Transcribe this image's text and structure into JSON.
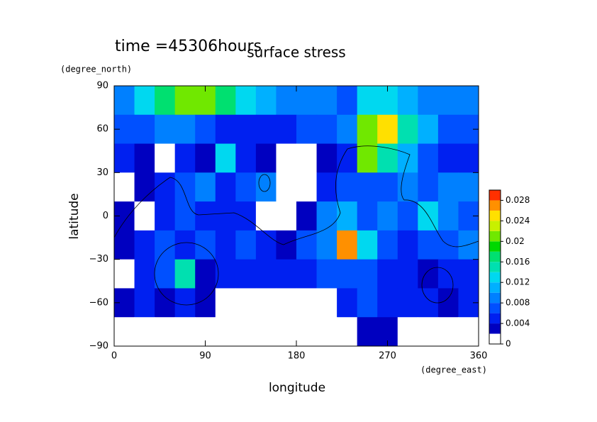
{
  "chart_data": {
    "type": "contour",
    "title": "surface stress",
    "subtitle": "time =45306hours",
    "x_label": "longitude",
    "x_unit": "(degree_east)",
    "y_label": "latitude",
    "y_unit": "(degree_north)",
    "xlim": [
      0,
      360
    ],
    "ylim": [
      -90,
      90
    ],
    "xticks": [
      0,
      90,
      180,
      270,
      360
    ],
    "yticks": [
      {
        "value": -90,
        "label": "−90"
      },
      {
        "value": -60,
        "label": "−60"
      },
      {
        "value": -30,
        "label": "−30"
      },
      0,
      30,
      60,
      90
    ],
    "x": [
      10,
      30,
      50,
      70,
      90,
      110,
      130,
      150,
      170,
      190,
      210,
      230,
      250,
      270,
      290,
      310,
      330,
      350
    ],
    "y": [
      80,
      60,
      40,
      20,
      0,
      -20,
      -40,
      -60,
      -80
    ],
    "z": [
      [
        0.009,
        0.012,
        0.016,
        0.02,
        0.02,
        0.016,
        0.012,
        0.01,
        0.009,
        0.009,
        0.008,
        0.007,
        0.012,
        0.012,
        0.01,
        0.008,
        0.008,
        0.009
      ],
      [
        0.006,
        0.007,
        0.008,
        0.008,
        0.006,
        0.004,
        0.005,
        0.005,
        0.005,
        0.006,
        0.006,
        0.008,
        0.02,
        0.024,
        0.014,
        0.01,
        0.007,
        0.006
      ],
      [
        0.004,
        0.002,
        0.001,
        0.004,
        0.003,
        0.012,
        0.004,
        0.003,
        0.001,
        0.001,
        0.003,
        0.005,
        0.02,
        0.014,
        0.01,
        0.006,
        0.005,
        0.004
      ],
      [
        0.001,
        0.002,
        0.004,
        0.006,
        0.008,
        0.004,
        0.006,
        0.008,
        0.001,
        0.001,
        0.004,
        0.006,
        0.007,
        0.006,
        0.008,
        0.006,
        0.008,
        0.008
      ],
      [
        0.002,
        0.001,
        0.004,
        0.006,
        0.004,
        0.004,
        0.005,
        0.001,
        0.001,
        0.003,
        0.008,
        0.01,
        0.006,
        0.008,
        0.006,
        0.012,
        0.008,
        0.006
      ],
      [
        0.003,
        0.004,
        0.006,
        0.005,
        0.007,
        0.004,
        0.006,
        0.004,
        0.003,
        0.006,
        0.008,
        0.026,
        0.012,
        0.006,
        0.005,
        0.006,
        0.006,
        0.008
      ],
      [
        0.001,
        0.004,
        0.006,
        0.014,
        0.003,
        0.004,
        0.004,
        0.005,
        0.004,
        0.004,
        0.006,
        0.006,
        0.006,
        0.005,
        0.004,
        0.003,
        0.004,
        0.004
      ],
      [
        0.002,
        0.004,
        0.003,
        0.004,
        0.003,
        0.001,
        0.001,
        0.001,
        0.001,
        0.001,
        0.001,
        0.004,
        0.006,
        0.005,
        0.004,
        0.004,
        0.003,
        0.004
      ],
      [
        0,
        0,
        0,
        0,
        0,
        0,
        0,
        0,
        0,
        0,
        0,
        0,
        0.003,
        0.003,
        0,
        0,
        0,
        0
      ]
    ],
    "levels": [
      0,
      0.002,
      0.004,
      0.006,
      0.008,
      0.01,
      0.012,
      0.014,
      0.016,
      0.018,
      0.02,
      0.022,
      0.024,
      0.026,
      0.028,
      0.03
    ],
    "colors": [
      "#ffffff",
      "#0000c0",
      "#0020f0",
      "#0050ff",
      "#0080ff",
      "#00b0ff",
      "#00d8f0",
      "#00e0b0",
      "#00e070",
      "#00d800",
      "#70e800",
      "#c8f000",
      "#ffe000",
      "#ff9000",
      "#ff3000"
    ],
    "colorbar_ticks": [
      0,
      0.004,
      0.008,
      0.012,
      0.016,
      0.02,
      0.024,
      0.028
    ]
  }
}
